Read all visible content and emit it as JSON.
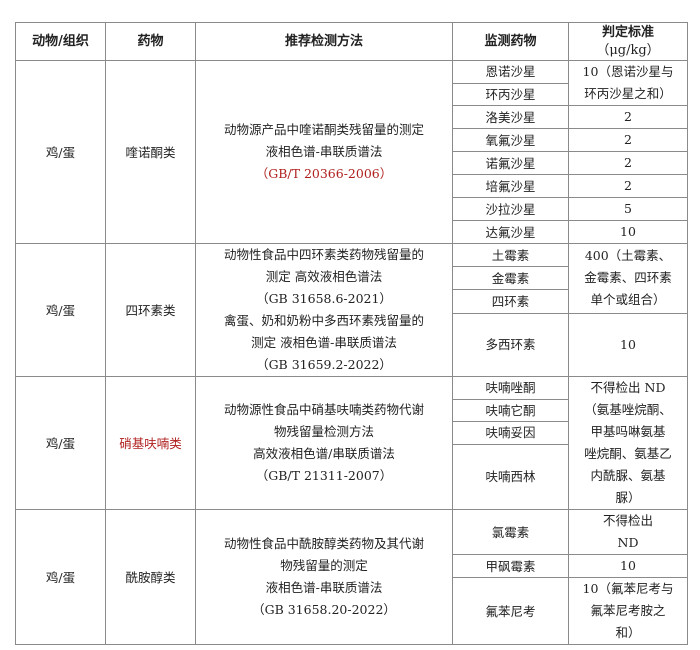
{
  "header": {
    "animal": "动物/组织",
    "drug": "药物",
    "method": "推荐检测方法",
    "monitored": "监测药物",
    "standard": "判定标准",
    "standard_unit": "（μg/kg）"
  },
  "colors": {
    "highlight": "#b0201f",
    "border": "#8a8a8a"
  },
  "groups": [
    {
      "animal": "鸡/蛋",
      "drug": "喹诺酮类",
      "drug_red": false,
      "method": [
        {
          "text": "动物源产品中喹诺酮类残留量的测定",
          "red": false
        },
        {
          "text": "液相色谱-串联质谱法",
          "red": false
        },
        {
          "text": "（GB/T 20366-2006）",
          "red": true
        }
      ],
      "rows": [
        {
          "name": "恩诺沙星",
          "standard": [
            "10（恩诺沙星与",
            "环丙沙星之和）"
          ],
          "span": 2,
          "h": 22
        },
        {
          "name": "环丙沙星",
          "h": 22
        },
        {
          "name": "洛美沙星",
          "standard": [
            "2"
          ],
          "span": 1,
          "h": 22
        },
        {
          "name": "氧氟沙星",
          "standard": [
            "2"
          ],
          "span": 1,
          "h": 22
        },
        {
          "name": "诺氟沙星",
          "standard": [
            "2"
          ],
          "span": 1,
          "h": 22
        },
        {
          "name": "培氟沙星",
          "standard": [
            "2"
          ],
          "span": 1,
          "h": 22
        },
        {
          "name": "沙拉沙星",
          "standard": [
            "5"
          ],
          "span": 1,
          "h": 22
        },
        {
          "name": "达氟沙星",
          "standard": [
            "10"
          ],
          "span": 1,
          "h": 22
        }
      ]
    },
    {
      "animal": "鸡/蛋",
      "drug": "四环素类",
      "drug_red": false,
      "method": [
        {
          "text": "动物性食品中四环素类药物残留量的",
          "red": false
        },
        {
          "text": "测定 高效液相色谱法",
          "red": false
        },
        {
          "text": "（GB 31658.6-2021）",
          "red": false
        },
        {
          "text": "禽蛋、奶和奶粉中多西环素残留量的",
          "red": false
        },
        {
          "text": "测定 液相色谱-串联质谱法",
          "red": false
        },
        {
          "text": "（GB 31659.2-2022）",
          "red": false
        }
      ],
      "rows": [
        {
          "name": "土霉素",
          "standard": [
            "400（土霉素、",
            "金霉素、四环素",
            "单个或组合）"
          ],
          "span": 3,
          "h": 22
        },
        {
          "name": "金霉素",
          "h": 22
        },
        {
          "name": "四环素",
          "h": 22
        },
        {
          "name": "多西环素",
          "standard": [
            "10"
          ],
          "span": 1,
          "h": 61
        }
      ]
    },
    {
      "animal": "鸡/蛋",
      "drug": "硝基呋喃类",
      "drug_red": true,
      "method": [
        {
          "text": "动物源性食品中硝基呋喃类药物代谢",
          "red": false
        },
        {
          "text": "物残留量检测方法",
          "red": false
        },
        {
          "text": "高效液相色谱/串联质谱法",
          "red": false
        },
        {
          "text": "（GB/T 21311-2007）",
          "red": false
        }
      ],
      "rows": [
        {
          "name": "呋喃唑酮",
          "standard": [
            "不得检出 ND",
            "（氨基唑烷酮、",
            "甲基吗啉氨基",
            "唑烷酮、氨基乙",
            "内酰脲、氨基",
            "脲）"
          ],
          "span": 4,
          "h": 22
        },
        {
          "name": "呋喃它酮",
          "h": 22
        },
        {
          "name": "呋喃妥因",
          "h": 22
        },
        {
          "name": "呋喃西林",
          "h": 64
        }
      ]
    },
    {
      "animal": "鸡/蛋",
      "drug": "酰胺醇类",
      "drug_red": false,
      "method": [
        {
          "text": "动物性食品中酰胺醇类药物及其代谢",
          "red": false
        },
        {
          "text": "物残留量的测定",
          "red": false
        },
        {
          "text": "液相色谱-串联质谱法",
          "red": false
        },
        {
          "text": "（GB 31658.20-2022）",
          "red": false
        }
      ],
      "rows": [
        {
          "name": "氯霉素",
          "standard": [
            "不得检出",
            "ND"
          ],
          "span": 1,
          "h": 44
        },
        {
          "name": "甲砜霉素",
          "standard": [
            "10"
          ],
          "span": 1,
          "h": 22
        },
        {
          "name": "氟苯尼考",
          "standard": [
            "10（氟苯尼考与",
            "氟苯尼考胺之",
            "和）"
          ],
          "span": 1,
          "h": 67
        }
      ]
    }
  ]
}
